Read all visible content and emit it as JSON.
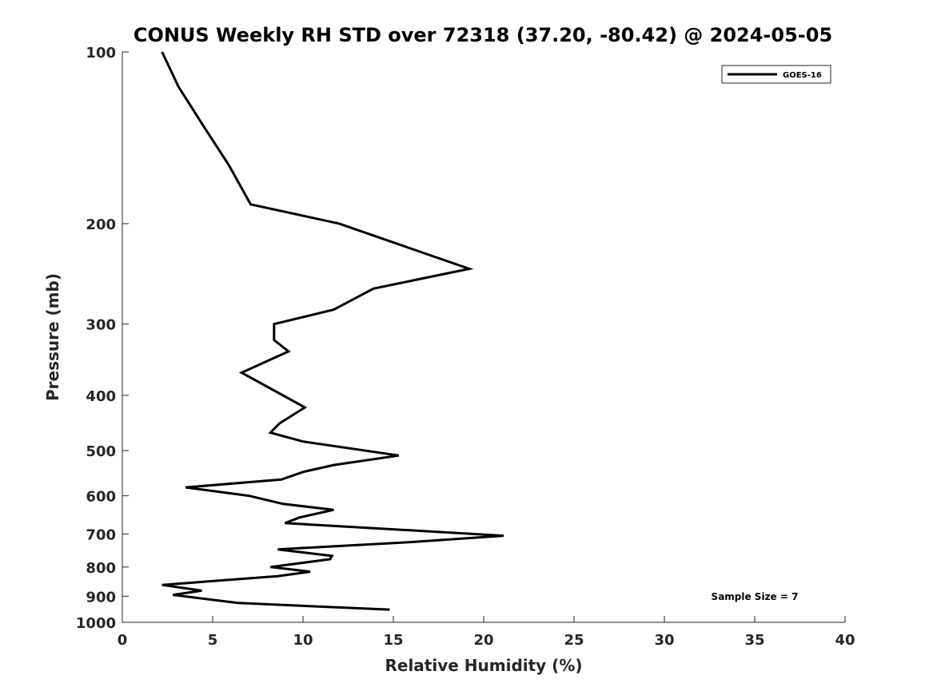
{
  "chart_data": {
    "type": "line",
    "title": "CONUS Weekly RH STD over 72318 (37.20, -80.42) @ 2024-05-05",
    "xlabel": "Relative Humidity (%)",
    "ylabel": "Pressure (mb)",
    "xlim": [
      0,
      40
    ],
    "ylim": [
      100,
      1000
    ],
    "y_scale": "log",
    "y_reversed": true,
    "x_ticks": [
      "0",
      "5",
      "10",
      "15",
      "20",
      "25",
      "30",
      "35",
      "40"
    ],
    "y_ticks": [
      "100",
      "200",
      "300",
      "400",
      "500",
      "600",
      "700",
      "800",
      "900",
      "1000"
    ],
    "grid": false,
    "legend_position": "top-right",
    "annotation": "Sample Size = 7",
    "series": [
      {
        "name": "GOES-16",
        "color": "#000000",
        "points": [
          [
            2.2,
            100
          ],
          [
            3.1,
            115
          ],
          [
            4.5,
            135
          ],
          [
            5.9,
            158
          ],
          [
            7.1,
            185
          ],
          [
            12.0,
            200
          ],
          [
            19.2,
            240
          ],
          [
            13.9,
            260
          ],
          [
            11.7,
            283
          ],
          [
            8.4,
            300
          ],
          [
            8.4,
            320
          ],
          [
            9.2,
            335
          ],
          [
            6.6,
            365
          ],
          [
            10.1,
            420
          ],
          [
            8.7,
            448
          ],
          [
            8.2,
            465
          ],
          [
            10.0,
            482
          ],
          [
            15.3,
            510
          ],
          [
            11.7,
            530
          ],
          [
            10.0,
            545
          ],
          [
            8.8,
            562
          ],
          [
            3.5,
            580
          ],
          [
            7.0,
            600
          ],
          [
            8.9,
            620
          ],
          [
            11.7,
            635
          ],
          [
            9.8,
            655
          ],
          [
            9.0,
            670
          ],
          [
            21.1,
            705
          ],
          [
            16.1,
            723
          ],
          [
            8.6,
            745
          ],
          [
            11.6,
            765
          ],
          [
            11.5,
            775
          ],
          [
            8.2,
            800
          ],
          [
            10.4,
            815
          ],
          [
            8.6,
            830
          ],
          [
            2.2,
            860
          ],
          [
            4.4,
            880
          ],
          [
            2.8,
            895
          ],
          [
            6.4,
            925
          ],
          [
            14.8,
            950
          ]
        ]
      }
    ]
  }
}
